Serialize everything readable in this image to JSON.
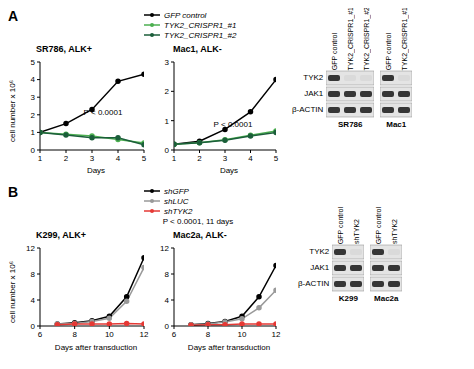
{
  "panel_labels": [
    "A",
    "B"
  ],
  "chart_data": [
    {
      "type": "line",
      "title": "SR786, ALK+",
      "x_label": "Days",
      "y_label": "cell number x 10⁶",
      "x": [
        1,
        2,
        3,
        4,
        5
      ],
      "xlim": [
        1,
        5
      ],
      "xticks": [
        1,
        2,
        3,
        4,
        5
      ],
      "ylim": [
        0,
        5
      ],
      "yticks": [
        0,
        1,
        2,
        3,
        4,
        5
      ],
      "legend": "upper right",
      "annotation": "P < 0.0001",
      "series": [
        {
          "name": "GFP control",
          "color": "#000000",
          "marker": "circle",
          "values": [
            1,
            1.5,
            2.3,
            3.9,
            4.3
          ]
        },
        {
          "name": "TYK2_CRISPR1_#1",
          "color": "#4caf50",
          "marker": "circle",
          "values": [
            1,
            0.9,
            0.8,
            0.6,
            0.4
          ]
        },
        {
          "name": "TYK2_CRISPR1_#2",
          "color": "#1b5e3a",
          "marker": "circle",
          "values": [
            1,
            0.85,
            0.7,
            0.7,
            0.3
          ]
        }
      ]
    },
    {
      "type": "line",
      "title": "Mac1, ALK-",
      "x_label": "Days",
      "x": [
        1,
        2,
        3,
        4,
        5
      ],
      "xlim": [
        1,
        5
      ],
      "xticks": [
        1,
        2,
        3,
        4,
        5
      ],
      "ylim": [
        0,
        3
      ],
      "yticks": [
        0,
        1,
        2,
        3
      ],
      "annotation": "P < 0.0001",
      "series": [
        {
          "name": "GFP control",
          "color": "#000000",
          "marker": "circle",
          "values": [
            0.2,
            0.3,
            0.7,
            1.3,
            2.4
          ]
        },
        {
          "name": "TYK2_CRISPR1_#1",
          "color": "#4caf50",
          "marker": "circle",
          "values": [
            0.2,
            0.25,
            0.35,
            0.5,
            0.65
          ]
        },
        {
          "name": "TYK2_CRISPR1_#2",
          "color": "#1b5e3a",
          "marker": "circle",
          "values": [
            0.2,
            0.25,
            0.33,
            0.48,
            0.6
          ]
        }
      ]
    },
    {
      "type": "line",
      "title": "K299, ALK+",
      "x_label": "Days after transduction",
      "y_label": "cell number x 10⁶",
      "x": [
        7,
        8,
        9,
        10,
        11,
        12
      ],
      "xlim": [
        6,
        12
      ],
      "xticks": [
        6,
        8,
        10,
        12
      ],
      "ylim": [
        0,
        12
      ],
      "yticks": [
        0,
        4,
        8,
        12
      ],
      "legend": "upper right",
      "annotation": "P < 0.0001, 11 days",
      "series": [
        {
          "name": "shGFP",
          "color": "#000000",
          "marker": "circle",
          "values": [
            0.3,
            0.5,
            0.8,
            1.5,
            4.5,
            10.5
          ]
        },
        {
          "name": "shLUC",
          "color": "#999999",
          "marker": "circle",
          "values": [
            0.3,
            0.4,
            0.7,
            1.2,
            3.8,
            9
          ]
        },
        {
          "name": "shTYK2",
          "color": "#e53935",
          "marker": "circle",
          "values": [
            0.2,
            0.3,
            0.3,
            0.3,
            0.4,
            0.3
          ]
        }
      ]
    },
    {
      "type": "line",
      "title": "Mac2a, ALK-",
      "x_label": "Days after transduction",
      "x": [
        7,
        8,
        9,
        10,
        11,
        12
      ],
      "xlim": [
        6,
        12
      ],
      "xticks": [
        6,
        8,
        10,
        12
      ],
      "ylim": [
        0,
        12
      ],
      "yticks": [
        0,
        4,
        8,
        12
      ],
      "series": [
        {
          "name": "shGFP",
          "color": "#000000",
          "marker": "circle",
          "values": [
            0.2,
            0.4,
            0.7,
            1.5,
            4.5,
            9.3
          ]
        },
        {
          "name": "shLUC",
          "color": "#999999",
          "marker": "circle",
          "values": [
            0.2,
            0.3,
            0.6,
            1.1,
            2.8,
            5.5
          ]
        },
        {
          "name": "shTYK2",
          "color": "#e53935",
          "marker": "circle",
          "values": [
            0.1,
            0.2,
            0.2,
            0.3,
            0.3,
            0.3
          ]
        }
      ]
    }
  ],
  "blot_groups": [
    {
      "row_labels": [
        "TYK2",
        "JAK1",
        "β-ACTIN"
      ],
      "blots": [
        {
          "cell_line": "SR786",
          "lanes": [
            "GFP control",
            "TYK2_CRISPR1_#1",
            "TYK2_CRISPR1_#2"
          ],
          "signal": [
            [
              1,
              0,
              0
            ],
            [
              1,
              1,
              1
            ],
            [
              1,
              1,
              1
            ]
          ]
        },
        {
          "cell_line": "Mac1",
          "lanes": [
            "GFP control",
            "TYK2_CRISPR1_#1"
          ],
          "signal": [
            [
              1,
              0
            ],
            [
              1,
              1
            ],
            [
              1,
              1
            ]
          ]
        }
      ]
    },
    {
      "row_labels": [
        "TYK2",
        "JAK1",
        "β-ACTIN"
      ],
      "blots": [
        {
          "cell_line": "K299",
          "lanes": [
            "GFP control",
            "shTYK2"
          ],
          "signal": [
            [
              1,
              0
            ],
            [
              1,
              1
            ],
            [
              1,
              1
            ]
          ]
        },
        {
          "cell_line": "Mac2a",
          "lanes": [
            "GFP control",
            "shTYK2"
          ],
          "signal": [
            [
              1,
              0
            ],
            [
              1,
              1
            ],
            [
              1,
              1
            ]
          ]
        }
      ]
    }
  ]
}
